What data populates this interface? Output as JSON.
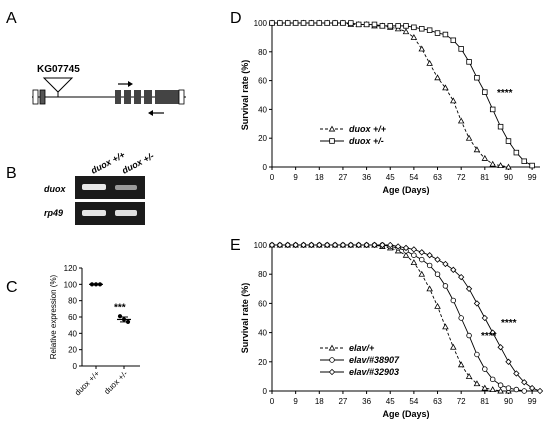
{
  "panels": {
    "A": {
      "label": "A",
      "insertion": "KG07745"
    },
    "B": {
      "label": "B",
      "lanes": [
        "duox +/+",
        "duox +/-"
      ],
      "rows": [
        "duox",
        "rp49"
      ]
    },
    "C": {
      "label": "C",
      "significance": "***"
    },
    "D": {
      "label": "D",
      "significance": "****"
    },
    "E": {
      "label": "E",
      "significance": [
        "****",
        "****"
      ]
    }
  },
  "chart_data": [
    {
      "id": "C",
      "type": "scatter",
      "title": "",
      "ylabel": "Relative expression (%)",
      "xlabel": "",
      "categories": [
        "duox +/+",
        "duox +/-"
      ],
      "ylim": [
        0,
        120
      ],
      "yticks": [
        0,
        20,
        40,
        60,
        80,
        100,
        120
      ],
      "series": [
        {
          "category": "duox +/+",
          "points": [
            100,
            100,
            100
          ],
          "mean": 100,
          "sem": 0
        },
        {
          "category": "duox +/-",
          "points": [
            61,
            57,
            54
          ],
          "mean": 57,
          "sem": 3
        }
      ]
    },
    {
      "id": "D",
      "type": "line",
      "title": "",
      "xlabel": "Age (Days)",
      "ylabel": "Survival rate (%)",
      "xlim": [
        0,
        102
      ],
      "ylim": [
        0,
        100
      ],
      "xticks": [
        0,
        9,
        18,
        27,
        36,
        45,
        54,
        63,
        72,
        81,
        90,
        99
      ],
      "yticks": [
        0,
        20,
        40,
        60,
        80,
        100
      ],
      "legend": "bottom-left",
      "series": [
        {
          "name": "duox +/+",
          "marker": "triangle",
          "dash": "dashed",
          "x": [
            0,
            3,
            6,
            9,
            12,
            15,
            18,
            21,
            24,
            27,
            30,
            33,
            36,
            39,
            42,
            45,
            48,
            51,
            54,
            57,
            60,
            63,
            66,
            69,
            72,
            75,
            78,
            81,
            84,
            87,
            90
          ],
          "y": [
            100,
            100,
            100,
            100,
            100,
            100,
            100,
            100,
            100,
            100,
            99,
            99,
            99,
            98,
            98,
            97,
            96,
            94,
            90,
            82,
            72,
            62,
            55,
            46,
            32,
            20,
            12,
            6,
            2,
            1,
            0
          ]
        },
        {
          "name": "duox +/-",
          "marker": "square",
          "dash": "solid",
          "x": [
            0,
            3,
            6,
            9,
            12,
            15,
            18,
            21,
            24,
            27,
            30,
            33,
            36,
            39,
            42,
            45,
            48,
            51,
            54,
            57,
            60,
            63,
            66,
            69,
            72,
            75,
            78,
            81,
            84,
            87,
            90,
            93,
            96,
            99
          ],
          "y": [
            100,
            100,
            100,
            100,
            100,
            100,
            100,
            100,
            100,
            100,
            100,
            99,
            99,
            99,
            98,
            98,
            98,
            98,
            97,
            96,
            95,
            93,
            92,
            88,
            82,
            73,
            62,
            52,
            40,
            28,
            18,
            10,
            4,
            1
          ]
        }
      ]
    },
    {
      "id": "E",
      "type": "line",
      "title": "",
      "xlabel": "Age (Days)",
      "ylabel": "Survival rate (%)",
      "xlim": [
        0,
        102
      ],
      "ylim": [
        0,
        100
      ],
      "xticks": [
        0,
        9,
        18,
        27,
        36,
        45,
        54,
        63,
        72,
        81,
        90,
        99
      ],
      "yticks": [
        0,
        20,
        40,
        60,
        80,
        100
      ],
      "legend": "bottom-left",
      "series": [
        {
          "name": "elav/+",
          "marker": "triangle",
          "dash": "dashed",
          "x": [
            0,
            3,
            6,
            9,
            12,
            15,
            18,
            21,
            24,
            27,
            30,
            33,
            36,
            39,
            42,
            45,
            48,
            51,
            54,
            57,
            60,
            63,
            66,
            69,
            72,
            75,
            78,
            81,
            84,
            87,
            90
          ],
          "y": [
            100,
            100,
            100,
            100,
            100,
            100,
            100,
            100,
            100,
            100,
            100,
            100,
            100,
            100,
            99,
            98,
            96,
            93,
            88,
            80,
            70,
            58,
            44,
            30,
            18,
            10,
            5,
            2,
            1,
            0,
            0
          ]
        },
        {
          "name": "elav/#38907",
          "marker": "circle",
          "dash": "solid",
          "x": [
            0,
            3,
            6,
            9,
            12,
            15,
            18,
            21,
            24,
            27,
            30,
            33,
            36,
            39,
            42,
            45,
            48,
            51,
            54,
            57,
            60,
            63,
            66,
            69,
            72,
            75,
            78,
            81,
            84,
            87,
            90,
            93,
            96
          ],
          "y": [
            100,
            100,
            100,
            100,
            100,
            100,
            100,
            100,
            100,
            100,
            100,
            100,
            100,
            100,
            100,
            99,
            98,
            96,
            93,
            90,
            86,
            80,
            72,
            62,
            50,
            38,
            25,
            15,
            8,
            4,
            2,
            1,
            0
          ]
        },
        {
          "name": "elav/#32903",
          "marker": "diamond",
          "dash": "solid",
          "x": [
            0,
            3,
            6,
            9,
            12,
            15,
            18,
            21,
            24,
            27,
            30,
            33,
            36,
            39,
            42,
            45,
            48,
            51,
            54,
            57,
            60,
            63,
            66,
            69,
            72,
            75,
            78,
            81,
            84,
            87,
            90,
            93,
            96,
            99,
            102
          ],
          "y": [
            100,
            100,
            100,
            100,
            100,
            100,
            100,
            100,
            100,
            100,
            100,
            100,
            100,
            100,
            100,
            100,
            99,
            98,
            97,
            95,
            93,
            90,
            87,
            83,
            78,
            70,
            60,
            50,
            40,
            30,
            20,
            12,
            6,
            2,
            0
          ]
        }
      ]
    }
  ]
}
